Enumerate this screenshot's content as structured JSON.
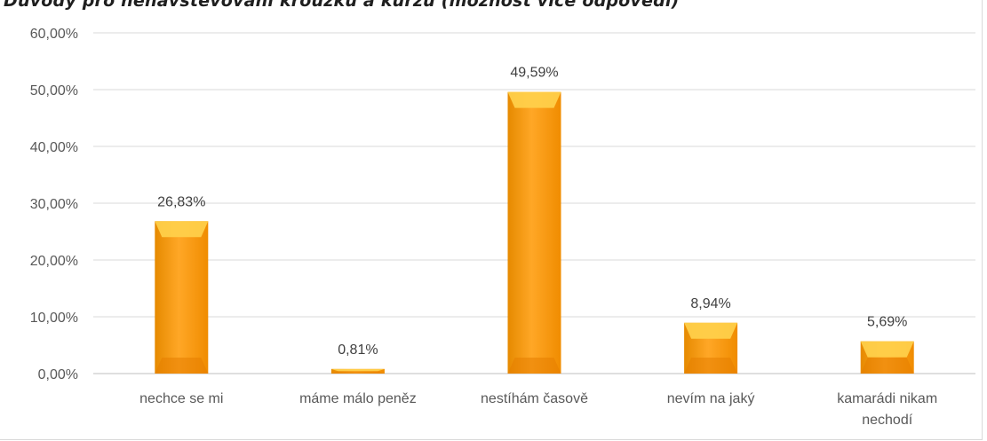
{
  "chart_data": {
    "type": "bar",
    "title": "Důvody pro nenavštěvování kroužku a kurzu (možnost více odpovědí)",
    "categories": [
      [
        "nechce se mi"
      ],
      [
        "máme málo peněz"
      ],
      [
        "nestíhám časově"
      ],
      [
        "nevím na jaký"
      ],
      [
        "kamarádi nikam",
        "nechodí"
      ]
    ],
    "values": [
      26.83,
      0.81,
      49.59,
      8.94,
      5.69
    ],
    "data_labels": [
      "26,83%",
      "0,81%",
      "49,59%",
      "8,94%",
      "5,69%"
    ],
    "y_ticks": [
      "0,00%",
      "10,00%",
      "20,00%",
      "30,00%",
      "40,00%",
      "50,00%",
      "60,00%"
    ],
    "ylim": [
      0,
      60
    ],
    "grid": true,
    "legend": "none",
    "colors": {
      "bar_main": "#f7a21b",
      "bar_light": "#ffd24d",
      "bar_dark": "#e67e00",
      "grid": "#d9d9d9",
      "axis": "#bfbfbf"
    }
  }
}
